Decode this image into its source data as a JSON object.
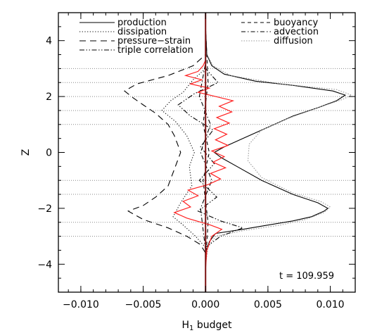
{
  "chart_data": {
    "type": "line",
    "title": "",
    "xlabel": "H",
    "xlabel_sub": "1",
    "xlabel_rest": " budget",
    "ylabel": "Z",
    "xlim": [
      -0.0118,
      0.012
    ],
    "ylim": [
      -5.0,
      5.0
    ],
    "xticks": [
      -0.01,
      -0.005,
      0.0,
      0.005,
      0.01
    ],
    "xtick_labels": [
      "−0.010",
      "−0.005",
      "0.000",
      "0.005",
      "0.010"
    ],
    "yticks": [
      -4,
      -2,
      0,
      2,
      4
    ],
    "ytick_labels": [
      "−4",
      "−2",
      "0",
      "2",
      "4"
    ],
    "hgrid_dotted_at": [
      -3,
      -2.5,
      -1.5,
      -1,
      1,
      1.5,
      2,
      2.5,
      3
    ],
    "vertical_line_at": 0.0,
    "annotation": "t = 109.959",
    "legend": [
      {
        "label": "production",
        "style": "solid"
      },
      {
        "label": "dissipation",
        "style": "dotted"
      },
      {
        "label": "pressure−strain",
        "style": "dashed-long"
      },
      {
        "label": "triple correlation",
        "style": "dash-dot-dot"
      },
      {
        "label": "buoyancy",
        "style": "dashed"
      },
      {
        "label": "advection",
        "style": "dash-dot"
      },
      {
        "label": "diffusion",
        "style": "dotted-fine"
      }
    ],
    "series": [
      {
        "name": "production",
        "color": "#000000",
        "dash": "",
        "points": [
          [
            0,
            -4
          ],
          [
            0.0001,
            -3.5
          ],
          [
            0.0003,
            -3.2
          ],
          [
            0.0008,
            -2.9
          ],
          [
            0.003,
            -2.75
          ],
          [
            0.005,
            -2.6
          ],
          [
            0.007,
            -2.45
          ],
          [
            0.0085,
            -2.3
          ],
          [
            0.0095,
            -2.1
          ],
          [
            0.0098,
            -2.0
          ],
          [
            0.009,
            -1.8
          ],
          [
            0.007,
            -1.5
          ],
          [
            0.0045,
            -1.0
          ],
          [
            0.0025,
            -0.5
          ],
          [
            0.0013,
            -0.2
          ],
          [
            0.0007,
            0.0
          ],
          [
            0.0015,
            0.2
          ],
          [
            0.003,
            0.5
          ],
          [
            0.005,
            0.9
          ],
          [
            0.007,
            1.3
          ],
          [
            0.009,
            1.6
          ],
          [
            0.0105,
            1.85
          ],
          [
            0.0112,
            2.05
          ],
          [
            0.0102,
            2.2
          ],
          [
            0.007,
            2.4
          ],
          [
            0.004,
            2.55
          ],
          [
            0.0015,
            2.8
          ],
          [
            0.0005,
            3.1
          ],
          [
            0.0001,
            3.5
          ],
          [
            0,
            4.5
          ]
        ]
      },
      {
        "name": "diffusion",
        "color": "#999999",
        "dash": "1.5 2",
        "points": [
          [
            0,
            -4
          ],
          [
            0.0002,
            -3.4
          ],
          [
            0.0008,
            -3.0
          ],
          [
            0.003,
            -2.8
          ],
          [
            0.006,
            -2.6
          ],
          [
            0.008,
            -2.4
          ],
          [
            0.0095,
            -2.15
          ],
          [
            0.01,
            -1.95
          ],
          [
            0.0092,
            -1.75
          ],
          [
            0.007,
            -1.45
          ],
          [
            0.0045,
            -0.9
          ],
          [
            0.0034,
            -0.3
          ],
          [
            0.0035,
            0.3
          ],
          [
            0.0045,
            0.8
          ],
          [
            0.0065,
            1.2
          ],
          [
            0.009,
            1.6
          ],
          [
            0.011,
            1.9
          ],
          [
            0.0117,
            2.05
          ],
          [
            0.0105,
            2.25
          ],
          [
            0.006,
            2.45
          ],
          [
            0.002,
            2.75
          ],
          [
            0.0006,
            3.1
          ],
          [
            0,
            3.6
          ]
        ]
      },
      {
        "name": "pressure−strain",
        "color": "#000000",
        "dash": "9 6",
        "points": [
          [
            0,
            -3.6
          ],
          [
            -0.0004,
            -3.3
          ],
          [
            -0.0015,
            -3.0
          ],
          [
            -0.003,
            -2.7
          ],
          [
            -0.005,
            -2.4
          ],
          [
            -0.0062,
            -2.1
          ],
          [
            -0.005,
            -1.9
          ],
          [
            -0.004,
            -1.6
          ],
          [
            -0.003,
            -1.2
          ],
          [
            -0.0025,
            -0.6
          ],
          [
            -0.002,
            0.0
          ],
          [
            -0.0025,
            0.6
          ],
          [
            -0.003,
            1.0
          ],
          [
            -0.004,
            1.4
          ],
          [
            -0.005,
            1.7
          ],
          [
            -0.0058,
            1.95
          ],
          [
            -0.0065,
            2.2
          ],
          [
            -0.0055,
            2.45
          ],
          [
            -0.003,
            2.75
          ],
          [
            -0.001,
            3.1
          ],
          [
            0,
            3.5
          ]
        ]
      },
      {
        "name": "dissipation",
        "color": "#000000",
        "dash": "1.2 2.5",
        "points": [
          [
            0,
            -3.4
          ],
          [
            -0.0008,
            -3.0
          ],
          [
            -0.0018,
            -2.6
          ],
          [
            -0.0026,
            -2.3
          ],
          [
            -0.002,
            -1.8
          ],
          [
            -0.0011,
            -1.2
          ],
          [
            -0.0013,
            -0.5
          ],
          [
            -0.0009,
            0.0
          ],
          [
            -0.0015,
            0.6
          ],
          [
            -0.0024,
            1.1
          ],
          [
            -0.0035,
            1.5
          ],
          [
            -0.0028,
            1.85
          ],
          [
            -0.0018,
            2.15
          ],
          [
            -0.001,
            2.6
          ],
          [
            0,
            3.0
          ]
        ]
      },
      {
        "name": "triple correlation",
        "color": "#000000",
        "dash": "7 2.5 1.5 2.5 1.5 2.5",
        "points": [
          [
            0,
            -3.4
          ],
          [
            0.0012,
            -3.0
          ],
          [
            0.003,
            -2.7
          ],
          [
            0.0012,
            -2.45
          ],
          [
            -0.0006,
            -2.1
          ],
          [
            0.0009,
            -1.6
          ],
          [
            -0.0005,
            -1.0
          ],
          [
            0.0007,
            -0.4
          ],
          [
            -0.0004,
            0.2
          ],
          [
            0.0006,
            0.8
          ],
          [
            -0.0012,
            1.3
          ],
          [
            -0.0022,
            1.7
          ],
          [
            -0.0009,
            2.1
          ],
          [
            0.001,
            2.5
          ],
          [
            0,
            3.0
          ]
        ]
      },
      {
        "name": "buoyancy",
        "color": "#000000",
        "dash": "5 4",
        "points": [
          [
            0,
            -4
          ],
          [
            0.0002,
            -2.5
          ],
          [
            -0.0002,
            -1.0
          ],
          [
            0.0003,
            0.0
          ],
          [
            -0.0002,
            1.0
          ],
          [
            0.0002,
            2.5
          ],
          [
            0,
            4.5
          ]
        ]
      },
      {
        "name": "advection",
        "color": "#000000",
        "dash": "6 3 1.5 3",
        "points": [
          [
            0,
            -3.5
          ],
          [
            -0.0004,
            -2.0
          ],
          [
            0.0005,
            -1.0
          ],
          [
            -0.0004,
            0.0
          ],
          [
            0.0004,
            1.0
          ],
          [
            -0.0005,
            2.0
          ],
          [
            0,
            3.2
          ]
        ]
      },
      {
        "name": "",
        "color": "#ff2020",
        "dash": "",
        "points": [
          [
            0,
            -4.2
          ],
          [
            0.0001,
            -3.5
          ],
          [
            0.0005,
            -3.0
          ],
          [
            0.0013,
            -2.75
          ],
          [
            0.0004,
            -2.6
          ],
          [
            -0.0015,
            -2.35
          ],
          [
            -0.0025,
            -2.15
          ],
          [
            -0.0012,
            -1.95
          ],
          [
            -0.0018,
            -1.75
          ],
          [
            -0.0006,
            -1.55
          ],
          [
            -0.0014,
            -1.35
          ],
          [
            0.0002,
            -1.15
          ],
          [
            0.0012,
            -0.95
          ],
          [
            0.0004,
            -0.75
          ],
          [
            0.0016,
            -0.55
          ],
          [
            0.0006,
            -0.35
          ],
          [
            0.0015,
            -0.15
          ],
          [
            0.0005,
            0.05
          ],
          [
            0.0018,
            0.25
          ],
          [
            0.0008,
            0.45
          ],
          [
            0.0017,
            0.65
          ],
          [
            0.0007,
            0.85
          ],
          [
            0.0019,
            1.05
          ],
          [
            0.0009,
            1.25
          ],
          [
            0.0021,
            1.45
          ],
          [
            0.0011,
            1.65
          ],
          [
            0.0022,
            1.85
          ],
          [
            0.0008,
            2.0
          ],
          [
            -0.0006,
            2.15
          ],
          [
            0.0003,
            2.3
          ],
          [
            -0.0012,
            2.45
          ],
          [
            -0.0003,
            2.6
          ],
          [
            -0.0016,
            2.75
          ],
          [
            -0.0006,
            2.9
          ],
          [
            -0.0002,
            3.1
          ],
          [
            0,
            3.3
          ]
        ]
      }
    ]
  }
}
